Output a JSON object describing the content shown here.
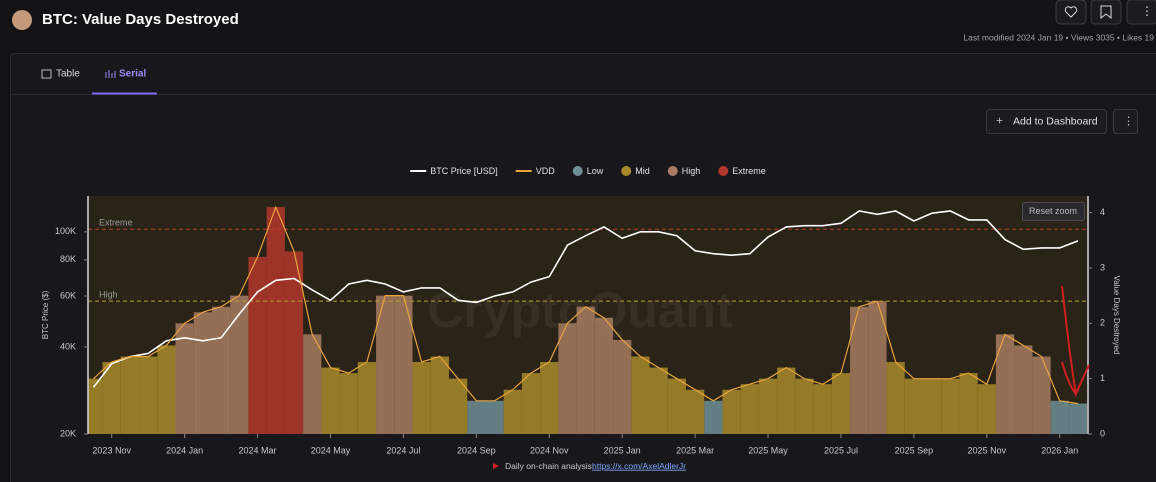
{
  "header": {
    "title": "BTC: Value Days Destroyed",
    "meta": "Last modified 2024 Jan 19 • Views 3035 • Likes 19"
  },
  "tabs": [
    "Table",
    "Serial"
  ],
  "buttons": {
    "add": "Add to Dashboard",
    "reset": "Reset zoom"
  },
  "watermark": "CryptoQuant",
  "footer": {
    "text": "Daily on-chain analysis:",
    "link": "https://x.com/AxelAdlerJr"
  },
  "chart_data": {
    "type": "line",
    "y_label": "BTC Price ($)",
    "y2_label": "Value Days Destroyed",
    "log_scale": true,
    "grid": false,
    "legend": "top",
    "x": [
      null,
      "2023 Nov",
      null,
      null,
      null,
      "2024 Jan",
      null,
      null,
      null,
      "2024 Mar",
      null,
      null,
      null,
      "2024 May",
      null,
      null,
      null,
      "2024 Jul",
      null,
      null,
      null,
      "2024 Sep",
      null,
      null,
      null,
      "2024 Nov",
      null,
      null,
      null,
      "2025 Jan",
      null,
      null,
      null,
      "2025 Mar",
      null,
      null,
      null,
      "2025 May",
      null,
      null,
      null,
      "2025 Jul",
      null,
      null,
      null,
      "2025 Sep",
      null,
      null,
      null,
      "2025 Nov",
      null,
      null,
      null,
      "2026 Jan",
      null
    ],
    "ylim": [
      20000,
      133000
    ],
    "yticks": [
      {
        "value": 20000,
        "label": "20K"
      },
      {
        "value": 40000,
        "label": "40K"
      },
      {
        "value": 60000,
        "label": "60K"
      },
      {
        "value": 80000,
        "label": "80K"
      },
      {
        "value": 100000,
        "label": "100K"
      }
    ],
    "y2lim": [
      0,
      4.3
    ],
    "y2ticks": [
      0,
      1,
      2,
      3,
      4
    ],
    "thresholds": [
      {
        "label": "Extreme",
        "value": 3.7,
        "color": "#c0392b"
      },
      {
        "label": "High",
        "value": 2.4,
        "color": "#b8a032"
      }
    ],
    "series": [
      {
        "name": "BTC Price [USD]",
        "color": "#ffffff",
        "kind": "line",
        "axis": "y",
        "values": [
          29000,
          35000,
          37000,
          38000,
          42000,
          43000,
          42000,
          43000,
          52000,
          62000,
          68000,
          69000,
          63000,
          58000,
          66000,
          68000,
          66000,
          62000,
          64000,
          64000,
          58000,
          57000,
          60000,
          62000,
          67000,
          70000,
          90000,
          97000,
          104000,
          95000,
          100000,
          100000,
          97000,
          86000,
          84000,
          83000,
          84000,
          96000,
          104000,
          105000,
          105000,
          107000,
          118000,
          115000,
          118000,
          109000,
          116000,
          118000,
          110000,
          110000,
          94000,
          87000,
          88000,
          88000,
          93000
        ]
      },
      {
        "name": "VDD",
        "color": "#e8a33d",
        "kind": "line",
        "axis": "y2",
        "values": [
          1.0,
          1.3,
          1.4,
          1.4,
          1.6,
          2.0,
          2.2,
          2.3,
          2.5,
          3.2,
          4.1,
          3.3,
          1.8,
          1.2,
          1.1,
          1.3,
          2.5,
          2.5,
          1.3,
          1.4,
          1.0,
          0.6,
          0.6,
          0.8,
          1.1,
          1.3,
          2.0,
          2.3,
          2.1,
          1.7,
          1.4,
          1.2,
          1.0,
          0.8,
          0.6,
          0.8,
          0.9,
          1.0,
          1.2,
          1.0,
          0.9,
          1.1,
          2.3,
          2.4,
          1.3,
          1.0,
          1.0,
          1.0,
          1.1,
          0.9,
          1.8,
          1.6,
          1.4,
          0.6,
          0.55
        ]
      },
      {
        "name": "Low",
        "color": "#6e8f96",
        "kind": "area",
        "axis": "y2",
        "values": [
          null,
          null,
          null,
          null,
          null,
          null,
          null,
          null,
          null,
          null,
          null,
          null,
          null,
          null,
          null,
          null,
          null,
          null,
          null,
          null,
          null,
          0.6,
          0.6,
          null,
          null,
          null,
          null,
          null,
          null,
          null,
          null,
          null,
          null,
          null,
          0.6,
          null,
          null,
          null,
          null,
          null,
          null,
          null,
          null,
          null,
          null,
          null,
          null,
          null,
          null,
          null,
          null,
          null,
          null,
          0.6,
          0.55
        ]
      },
      {
        "name": "Mid",
        "color": "#a88a2a",
        "kind": "area",
        "axis": "y2",
        "values": [
          1.0,
          1.3,
          1.4,
          1.4,
          1.6,
          null,
          null,
          null,
          null,
          null,
          null,
          null,
          null,
          1.2,
          1.1,
          1.3,
          null,
          null,
          1.3,
          1.4,
          1.0,
          null,
          null,
          0.8,
          1.1,
          1.3,
          null,
          null,
          null,
          null,
          1.4,
          1.2,
          1.0,
          0.8,
          null,
          0.8,
          0.9,
          1.0,
          1.2,
          1.0,
          0.9,
          1.1,
          null,
          null,
          1.3,
          1.0,
          1.0,
          1.0,
          1.1,
          0.9,
          null,
          null,
          null,
          null,
          null
        ]
      },
      {
        "name": "High",
        "color": "#a87b62",
        "kind": "area",
        "axis": "y2",
        "values": [
          null,
          null,
          null,
          null,
          null,
          2.0,
          2.2,
          2.3,
          2.5,
          null,
          null,
          null,
          1.8,
          null,
          null,
          null,
          2.5,
          2.5,
          null,
          null,
          null,
          null,
          null,
          null,
          null,
          null,
          2.0,
          2.3,
          2.1,
          1.7,
          null,
          null,
          null,
          null,
          null,
          null,
          null,
          null,
          null,
          null,
          null,
          null,
          2.3,
          2.4,
          null,
          null,
          null,
          null,
          null,
          null,
          1.8,
          1.6,
          1.4,
          null,
          null
        ]
      },
      {
        "name": "Extreme",
        "color": "#b3362c",
        "kind": "area",
        "axis": "y2",
        "values": [
          null,
          null,
          null,
          null,
          null,
          null,
          null,
          null,
          null,
          3.2,
          4.1,
          3.3,
          null,
          null,
          null,
          null,
          null,
          null,
          null,
          null,
          null,
          null,
          null,
          null,
          null,
          null,
          null,
          null,
          null,
          null,
          null,
          null,
          null,
          null,
          null,
          null,
          null,
          null,
          null,
          null,
          null,
          null,
          null,
          null,
          null,
          null,
          null,
          null,
          null,
          null,
          null,
          null,
          null,
          null,
          null
        ]
      }
    ]
  }
}
